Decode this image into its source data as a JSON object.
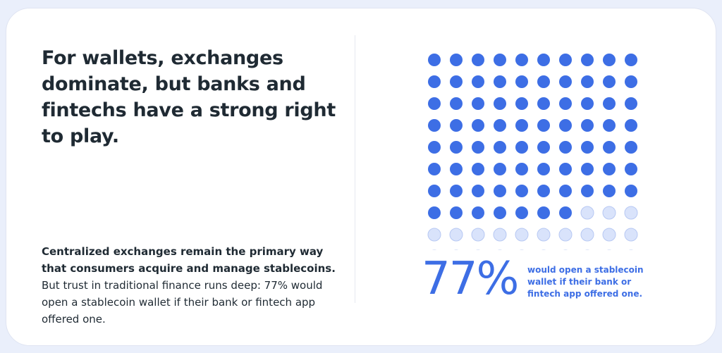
{
  "headline": "For wallets, exchanges dominate, but banks and fintechs have a strong right to play.",
  "body": {
    "lead": "Centralized exchanges remain the primary way that consumers acquire and manage stablecoins.",
    "rest": " But trust in traditional finance runs deep: 77% would open a stablecoin wallet if their bank or fintech app offered one."
  },
  "stat": {
    "value_label": "77%",
    "caption": "would open a stablecoin wallet if their bank or fintech app offered one."
  },
  "colors": {
    "filled_dot": "#3d6ee5",
    "empty_dot": "#d9e3fb",
    "empty_dot_stroke": "#b7c8f3",
    "text_dark": "#1f2a33"
  },
  "chart_data": {
    "type": "waffle",
    "grid": {
      "rows": 10,
      "cols": 10
    },
    "total": 100,
    "filled": 77,
    "value": 77,
    "unit": "%",
    "fill_order": "row-major from top-left"
  }
}
